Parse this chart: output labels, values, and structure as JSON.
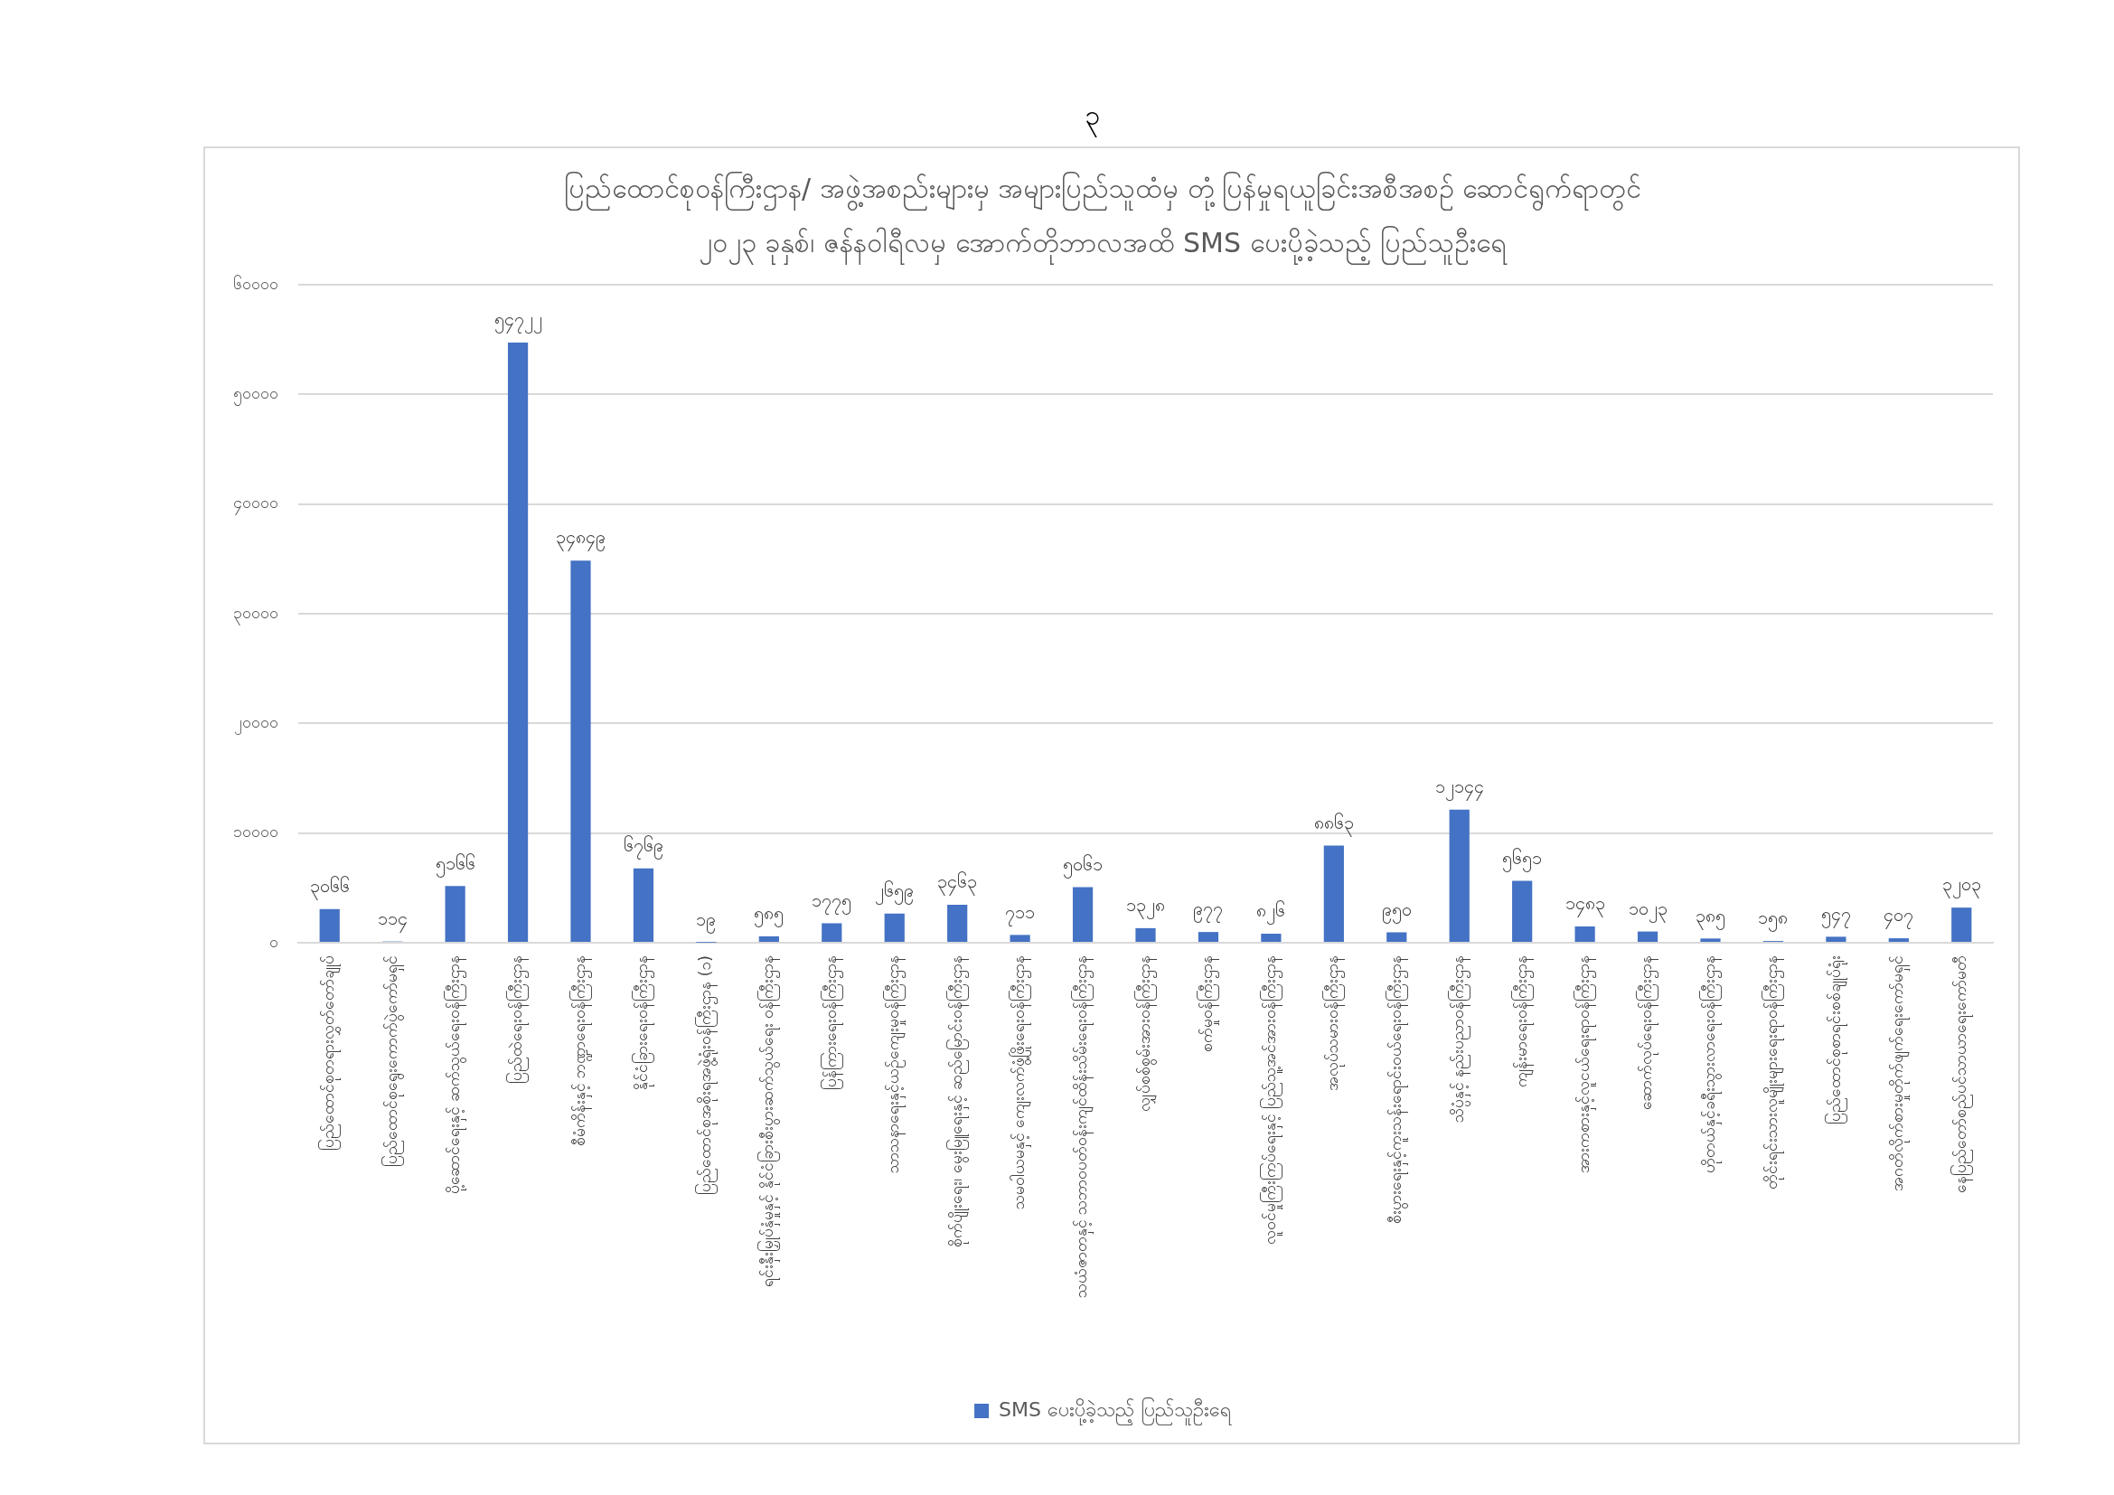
{
  "chart_data": {
    "type": "bar",
    "title": "ပြည်ထောင်စုဝန်ကြီးဌာန/ အဖွဲ့အစည်းများမှ အများပြည်သူထံမှ တုံ့ပြန်မှုရယူခြင်းအစီအစဉ် ဆောင်ရွက်ရာတွင်\n၂၀၂၃ ခုနှစ်၊ ဇန်နဝါရီလမှ အောက်တိုဘာလအထိ SMS ပေးပို့ခဲ့သည့် ပြည်သူဦးရေ",
    "annotations": [
      "၃"
    ],
    "categories": [
      "ပြည်ထောင်စုတရားလွှတ်တော်ချုပ်",
      "ပြည်ထောင်စုရွေးကောက်ပွဲကော်မရှင်",
      "ပို့ဆောင်ရေးနှင့် ဆက်သွယ်ရေးဝန်ကြီးဌာန",
      "ပြည်ထဲရေးဝန်ကြီးဌာန",
      "စီမံကိန်းနှင့် ဘဏ္ဍာရေးဝန်ကြီးဌာန",
      "နိုင်ငံခြားရေးဝန်ကြီးဌာန",
      "ပြည်ထောင်စုအစိုးရအဖွဲ့ရုံးဝန်ကြီးဌာန (၁)",
      "ရင်းနှီးမြှုပ်နှံမှုနှင့် နိုင်ငံခြားစီးပွားဆက်သွယ်ရေး ဝန်ကြီးဌာန",
      "ပြန်ကြားရေးဝန်ကြီးဌာန",
      "သာသနာရေးနှင့်ယဉ်ကျေးမှုဝန်ကြီးဌာန",
      "စိုက်ပျိုးရေး၊ မွေးမြူရေးနှင့် ဆည်မြောင်းဝန်ကြီးဌာန",
      "သမဝါယမနှင့် ကျေးလက်ဖွံ့ဖြိုးရေးဝန်ကြီးဌာန",
      "သယံဇာတနှင့် သဘာဝပတ်ဝန်းကျင်ထိန်းသိမ်းရေးဝန်ကြီးဌာန",
      "လျှပ်စစ်စွမ်းအားဝန်ကြီးဌာန",
      "စက်မှုဝန်ကြီးဌာန",
      "လူဝင်မှုကြီးကြပ်ရေးနှင့် ပြည်သူ့အင်အားဝန်ကြီးဌာန",
      "အလုပ်သမားဝန်ကြီးဌာန",
      "စီးပွားရေးနှင့်ကူးသန်းရောင်းဝယ်ရေးဝန်ကြီးဌာန",
      "သိပ္ပံနှင့် နည်းပညာဝန်ကြီးဌာန",
      "ကျန်းမာရေးဝန်ကြီးဌာန",
      "အားကစားနှင့်လူငယ်ရေးရာဝန်ကြီးဌာန",
      "ဆောက်လုပ်ရေးဝန်ကြီးဌာန",
      "ဟိုတယ်နှင့်ခရီးသွားလာရေးဝန်ကြီးဌာန",
      "တိုင်းရင်းသားလူမျိုးများရေးရာဝန်ကြီးဌာန",
      "ပြည်ထောင်စုစာရင်းစစ်ချုပ်ရုံး",
      "အဂတိလိုက်စားမှုတိုက်ဖျက်ရေးကော်မရှင်",
      "နေပြည်တော်စည်ပင်သာယာရေးကော်မတီ"
    ],
    "series": [
      {
        "name": "SMS ပေးပို့ခဲ့သည့် ပြည်သူဦးရေ",
        "color": "#4472c4",
        "values": [
          3066,
          114,
          5166,
          54722,
          34849,
          6769,
          19,
          585,
          1775,
          2659,
          3463,
          711,
          5061,
          1328,
          977,
          826,
          8863,
          950,
          12144,
          5651,
          1483,
          1023,
          385,
          158,
          547,
          407,
          3203
        ],
        "value_labels": [
          "၃၀၆၆",
          "၁၁၄",
          "၅၁၆၆",
          "၅၄၇၂၂",
          "၃၄၈၄၉",
          "၆၇၆၉",
          "၁၉",
          "၅၈၅",
          "၁၇၇၅",
          "၂၆၅၉",
          "၃၄၆၃",
          "၇၁၁",
          "၅၀၆၁",
          "၁၃၂၈",
          "၉၇၇",
          "၈၂၆",
          "၈၈၆၃",
          "၉၅၀",
          "၁၂၁၄၄",
          "၅၆၅၁",
          "၁၄၈၃",
          "၁၀၂၃",
          "၃၈၅",
          "၁၅၈",
          "၅၄၇",
          "၄၀၇",
          "၃၂၀၃"
        ]
      }
    ],
    "ylim": [
      0,
      60000
    ],
    "yticks": [
      {
        "value": 0,
        "label": "၀"
      },
      {
        "value": 10000,
        "label": "၁၀၀၀၀"
      },
      {
        "value": 20000,
        "label": "၂၀၀၀၀"
      },
      {
        "value": 30000,
        "label": "၃၀၀၀၀"
      },
      {
        "value": 40000,
        "label": "၄၀၀၀၀"
      },
      {
        "value": 50000,
        "label": "၅၀၀၀၀"
      },
      {
        "value": 60000,
        "label": "၆၀၀၀၀"
      }
    ],
    "grid": "y",
    "legend": "bottom"
  }
}
